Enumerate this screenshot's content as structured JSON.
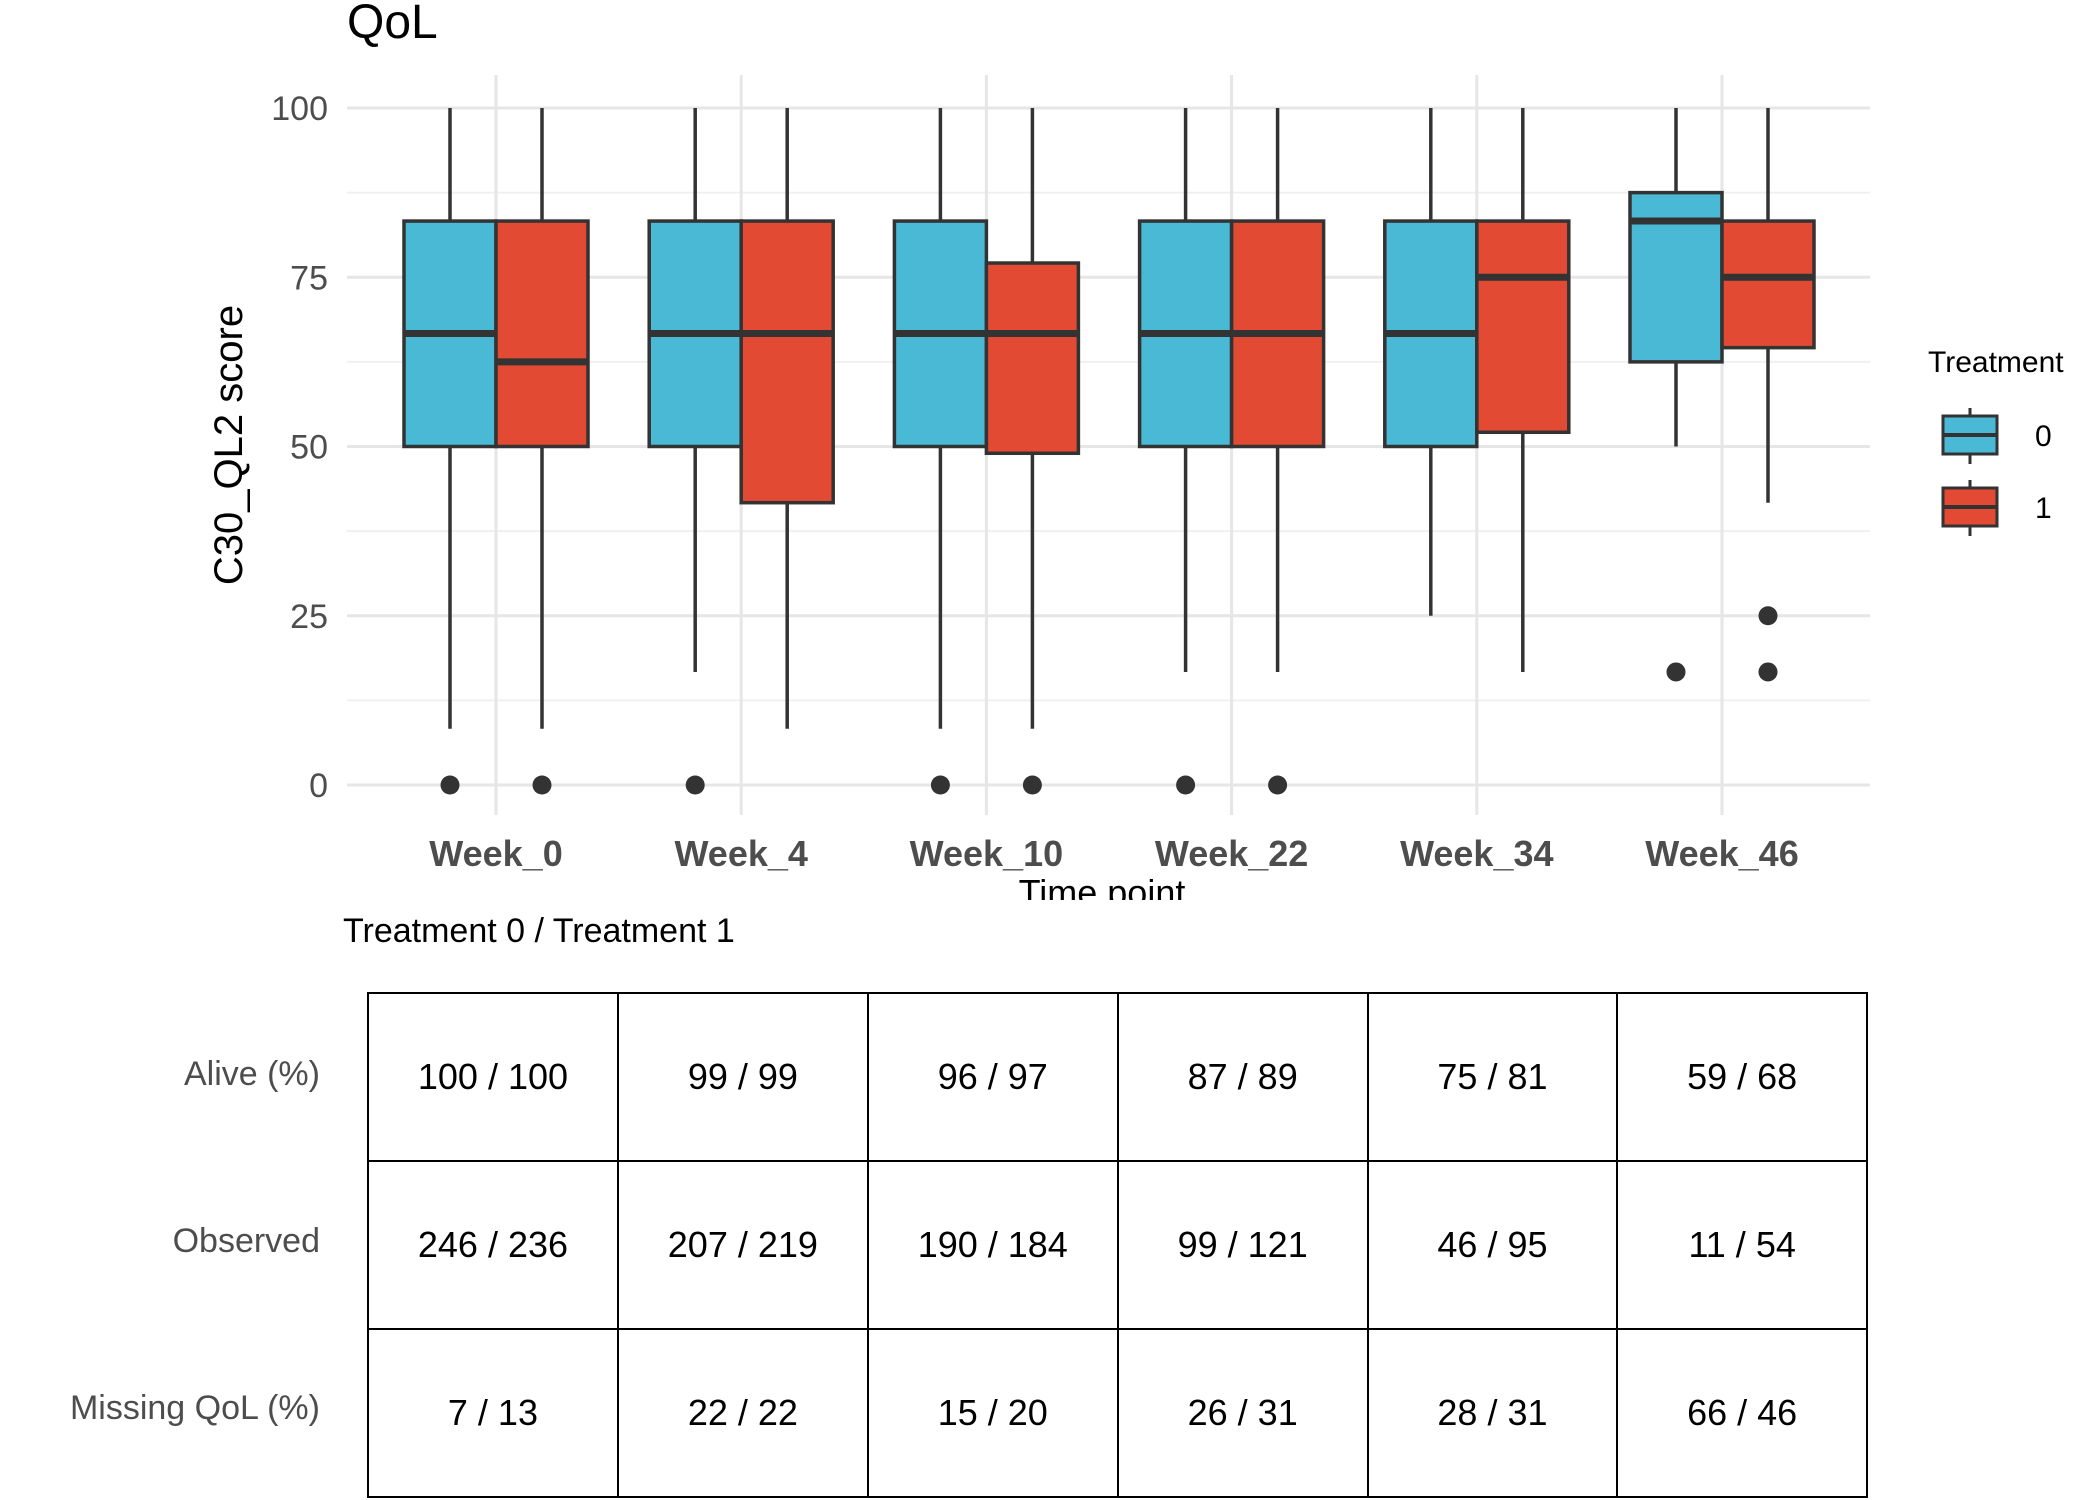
{
  "chart_data": {
    "type": "boxplot",
    "title": "QoL",
    "xlabel": "Time point",
    "ylabel": "C30_QL2 score",
    "ylim": [
      0,
      100
    ],
    "yticks": [
      0,
      25,
      50,
      75,
      100
    ],
    "grid": true,
    "legend": {
      "title": "Treatment",
      "position": "right",
      "entries": [
        "0",
        "1"
      ]
    },
    "colors": {
      "0": "#4ab9d6",
      "1": "#e24a33"
    },
    "categories": [
      "Week_0",
      "Week_4",
      "Week_10",
      "Week_22",
      "Week_34",
      "Week_46"
    ],
    "series": [
      {
        "name": "0",
        "boxes": [
          {
            "min": 8.3,
            "q1": 50,
            "median": 66.7,
            "q3": 83.3,
            "max": 100,
            "outliers": [
              0
            ]
          },
          {
            "min": 16.7,
            "q1": 50,
            "median": 66.7,
            "q3": 83.3,
            "max": 100,
            "outliers": [
              0
            ]
          },
          {
            "min": 8.3,
            "q1": 50,
            "median": 66.7,
            "q3": 83.3,
            "max": 100,
            "outliers": [
              0
            ]
          },
          {
            "min": 16.7,
            "q1": 50,
            "median": 66.7,
            "q3": 83.3,
            "max": 100,
            "outliers": [
              0
            ]
          },
          {
            "min": 25,
            "q1": 50,
            "median": 66.7,
            "q3": 83.3,
            "max": 100,
            "outliers": []
          },
          {
            "min": 50,
            "q1": 62.5,
            "median": 83.3,
            "q3": 87.5,
            "max": 100,
            "outliers": [
              16.7
            ]
          }
        ]
      },
      {
        "name": "1",
        "boxes": [
          {
            "min": 8.3,
            "q1": 50,
            "median": 62.5,
            "q3": 83.3,
            "max": 100,
            "outliers": [
              0
            ]
          },
          {
            "min": 8.3,
            "q1": 41.7,
            "median": 66.7,
            "q3": 83.3,
            "max": 100,
            "outliers": []
          },
          {
            "min": 8.3,
            "q1": 49,
            "median": 66.7,
            "q3": 77.1,
            "max": 100,
            "outliers": [
              0
            ]
          },
          {
            "min": 16.7,
            "q1": 50,
            "median": 66.7,
            "q3": 83.3,
            "max": 100,
            "outliers": [
              0
            ]
          },
          {
            "min": 16.7,
            "q1": 52.1,
            "median": 75,
            "q3": 83.3,
            "max": 100,
            "outliers": []
          },
          {
            "min": 41.7,
            "q1": 64.6,
            "median": 75,
            "q3": 83.3,
            "max": 100,
            "outliers": [
              16.7,
              25
            ]
          }
        ]
      }
    ]
  },
  "table": {
    "caption": "Treatment 0 / Treatment 1",
    "rows": [
      {
        "label": "Alive (%)",
        "cells": [
          "100 / 100",
          "99 / 99",
          "96 / 97",
          "87 / 89",
          "75 / 81",
          "59 / 68"
        ]
      },
      {
        "label": "Observed",
        "cells": [
          "246 / 236",
          "207 / 219",
          "190 / 184",
          "99 / 121",
          "46 / 95",
          "11 / 54"
        ]
      },
      {
        "label": "Missing QoL (%)",
        "cells": [
          "7 / 13",
          "22 / 22",
          "15 / 20",
          "26 / 31",
          "28 / 31",
          "66 / 46"
        ]
      }
    ]
  }
}
